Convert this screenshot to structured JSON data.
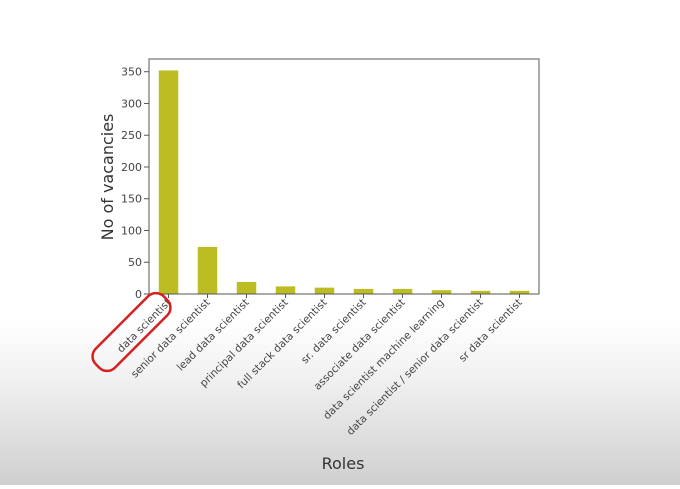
{
  "chart_data": {
    "type": "bar",
    "categories": [
      "data scientist",
      "senior data scientist",
      "lead data scientist",
      "principal data scientist",
      "full stack data scientist",
      "sr. data scientist",
      "associate data scientist",
      "data scientist machine learning",
      "data scientist / senior data scientist",
      "sr data scientist"
    ],
    "values": [
      352,
      74,
      19,
      12,
      10,
      8,
      8,
      6,
      5,
      5
    ],
    "xlabel": "Roles",
    "ylabel": "No of vacancies",
    "yticks": [
      0,
      50,
      100,
      150,
      200,
      250,
      300,
      350
    ],
    "ylim": [
      0,
      370
    ],
    "bar_color": "#bcbd22",
    "highlight_color": "#d62020",
    "highlighted_category": "data scientist",
    "grid": false
  }
}
